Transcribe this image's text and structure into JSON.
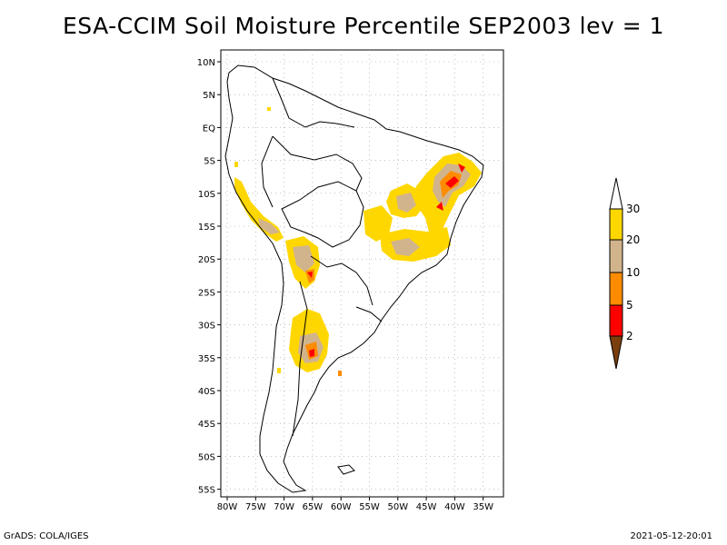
{
  "title": "ESA-CCIM Soil Moisture Percentile SEP2003 lev = 1",
  "footer": {
    "left": "GrADS: COLA/IGES",
    "right": "2021-05-12-20:01"
  },
  "map": {
    "lat_ticks": [
      "10N",
      "5N",
      "EQ",
      "5S",
      "10S",
      "15S",
      "20S",
      "25S",
      "30S",
      "35S",
      "40S",
      "45S",
      "50S",
      "55S"
    ],
    "lon_ticks": [
      "80W",
      "75W",
      "70W",
      "65W",
      "60W",
      "55W",
      "50W",
      "45W",
      "40W",
      "35W"
    ]
  },
  "colorbar": {
    "levels": [
      "2",
      "5",
      "10",
      "20",
      "30"
    ],
    "colors": {
      "lt2": "#7a3e0c",
      "2to5": "#ff0000",
      "5to10": "#ff8c00",
      "10to20": "#d2b48c",
      "20to30": "#ffd700",
      "gt30": "#ffffff"
    }
  }
}
